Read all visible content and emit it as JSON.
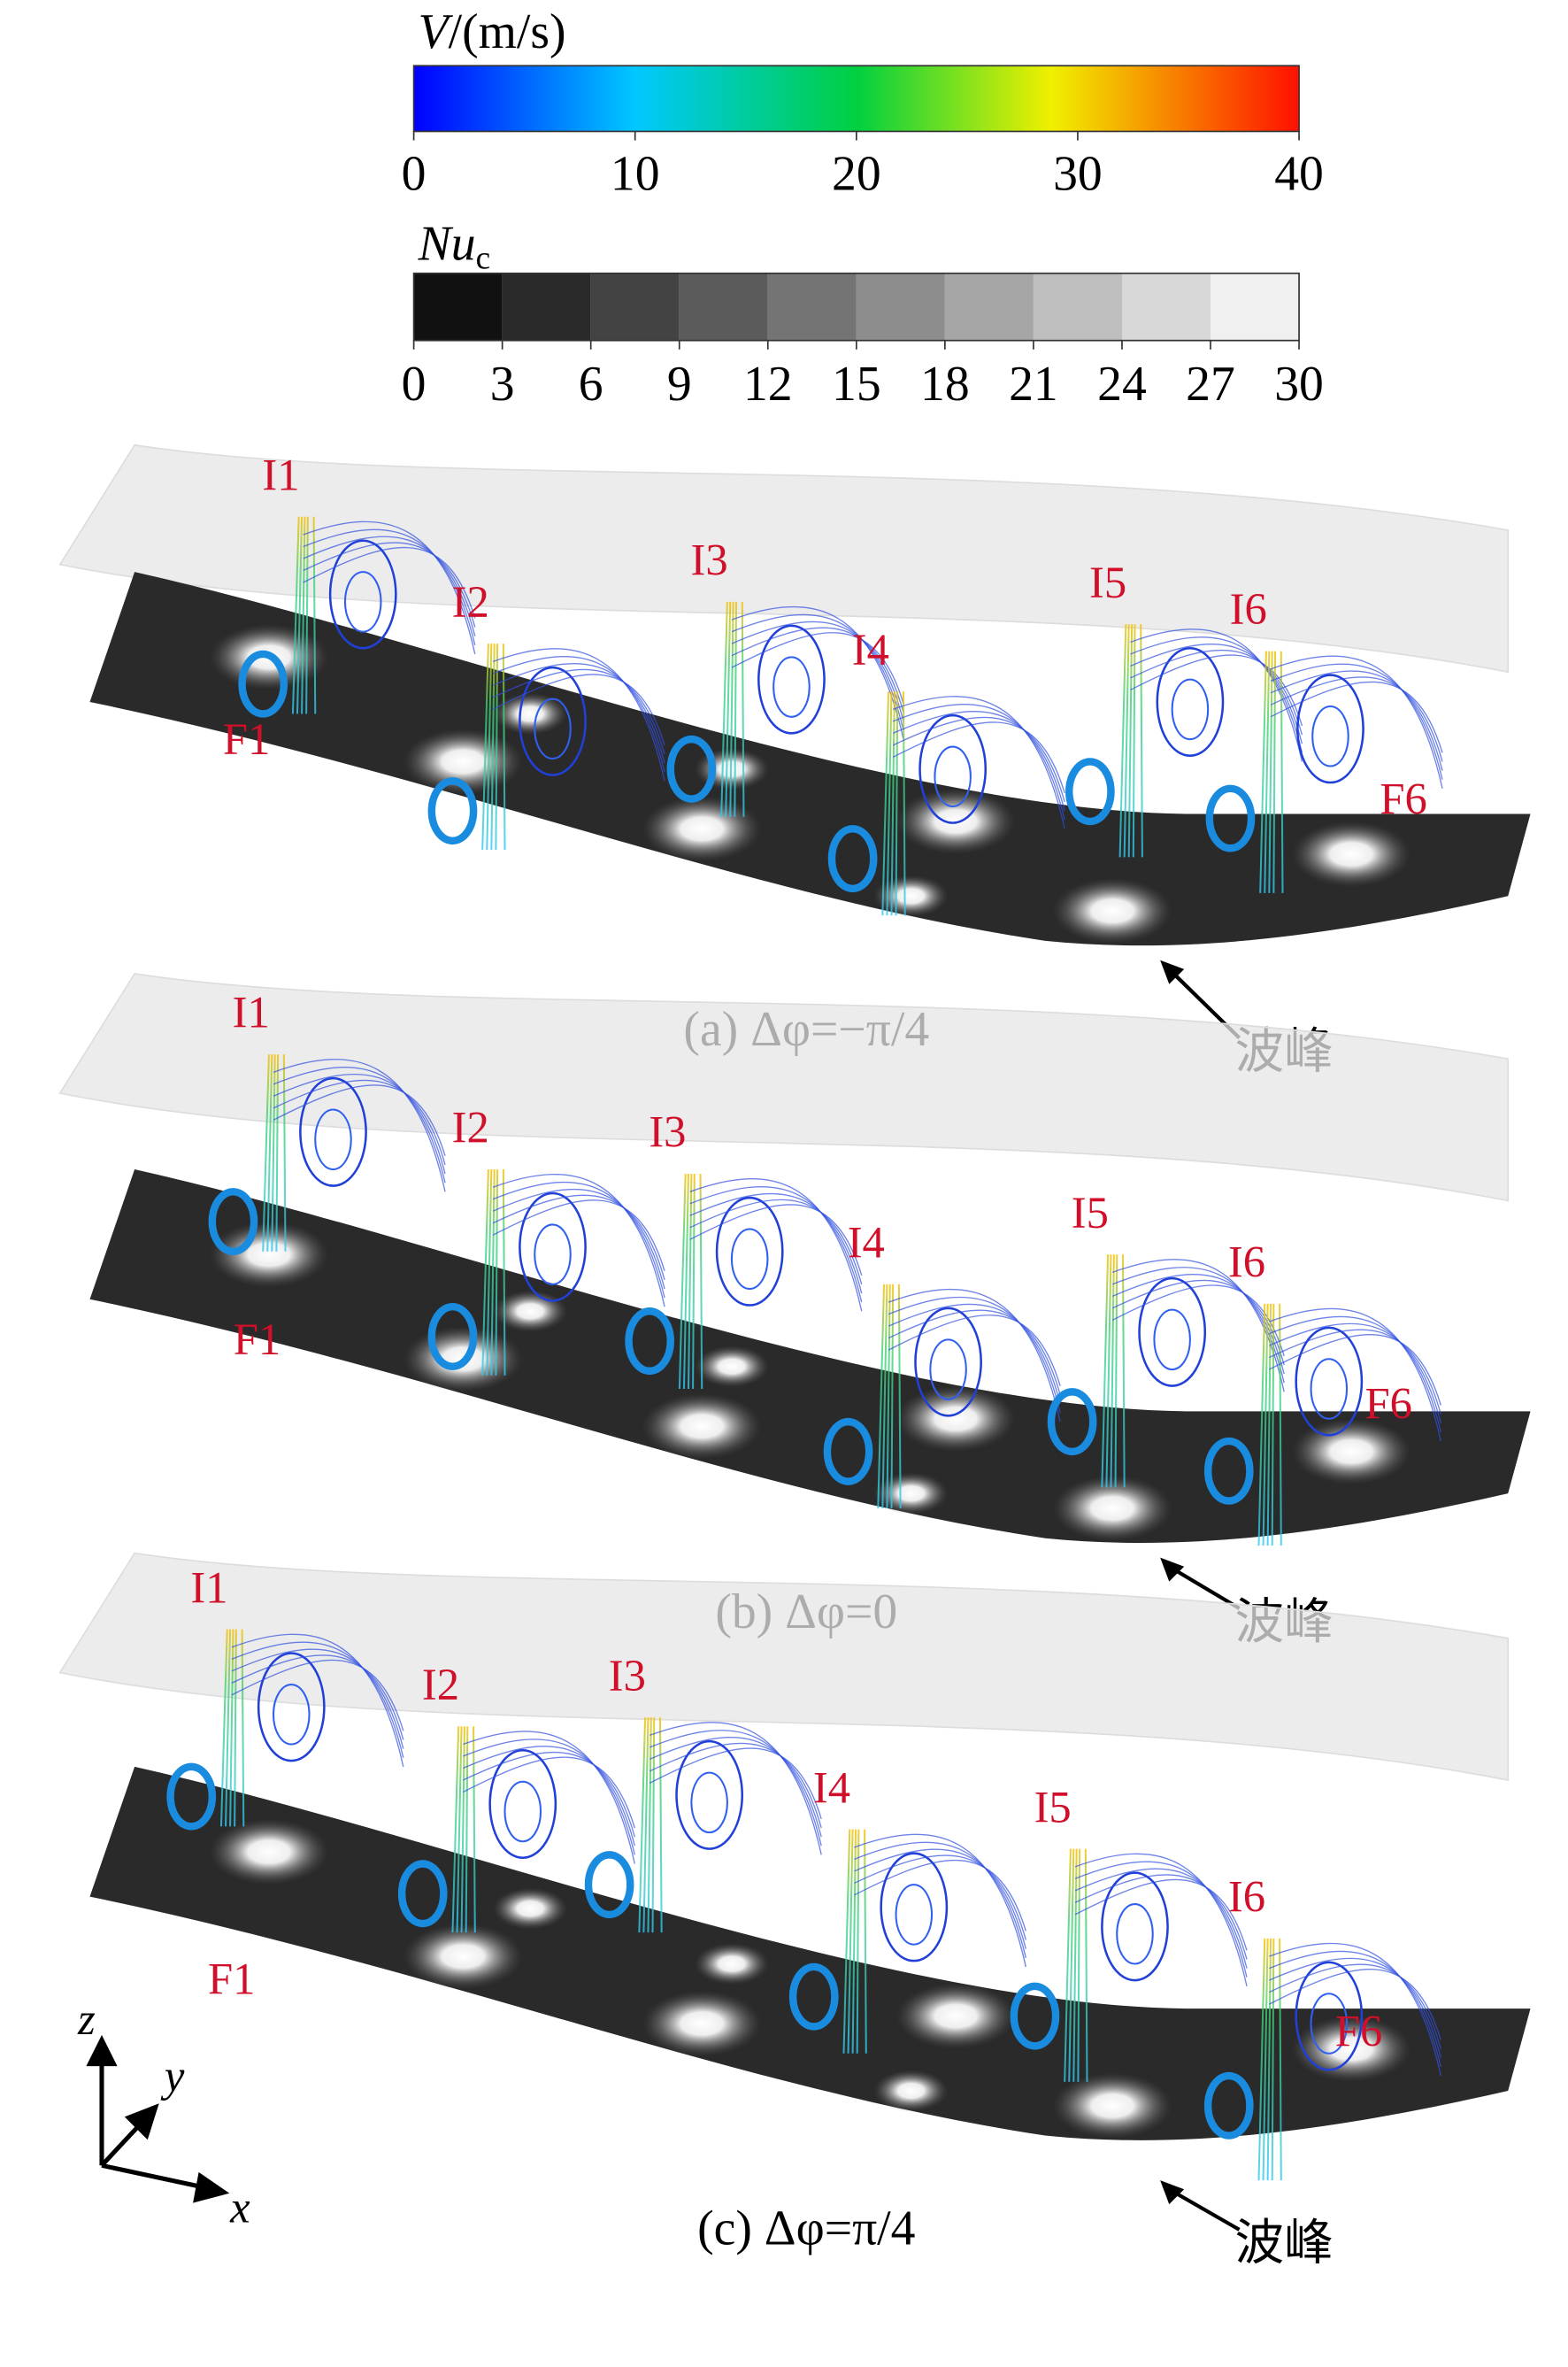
{
  "colorbars": [
    {
      "title": "V",
      "unit": "/(m/s)",
      "ticks": [
        0,
        10,
        20,
        30,
        40
      ]
    },
    {
      "title": "Nu",
      "subscript": "c",
      "ticks": [
        0,
        3,
        6,
        9,
        12,
        15,
        18,
        21,
        24,
        27,
        30
      ]
    }
  ],
  "panels": [
    {
      "caption": "(a) Δφ=−π/4",
      "labels": [
        "I1",
        "I2",
        "I3",
        "I4",
        "I5",
        "I6",
        "F1",
        "F6"
      ],
      "annotation": "波峰"
    },
    {
      "caption": "(b) Δφ=0",
      "labels": [
        "I1",
        "I2",
        "I3",
        "I4",
        "I5",
        "I6",
        "F1",
        "F6"
      ],
      "annotation": "波峰"
    },
    {
      "caption": "(c) Δφ=π/4",
      "labels": [
        "I1",
        "I2",
        "I3",
        "I4",
        "I5",
        "I6",
        "F1",
        "F6"
      ],
      "annotation": "波峰"
    }
  ],
  "axes": {
    "z": "z",
    "y": "y",
    "x": "x"
  }
}
